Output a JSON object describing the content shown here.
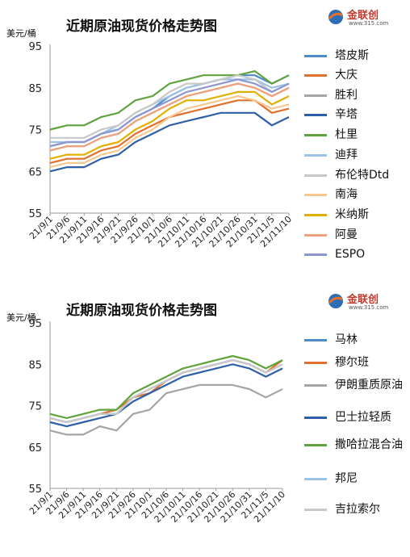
{
  "chart_data": [
    {
      "type": "line",
      "title": "近期原油现货价格走势图",
      "ylabel": "美元/桶",
      "ylim": [
        55,
        95
      ],
      "yticks": [
        55,
        65,
        75,
        85,
        95
      ],
      "xticks": [
        "21/9/1",
        "21/9/6",
        "21/9/11",
        "21/9/16",
        "21/9/21",
        "21/9/26",
        "21/10/1",
        "21/10/6",
        "21/10/11",
        "21/10/16",
        "21/10/21",
        "21/10/26",
        "21/10/31",
        "21/11/5",
        "21/11/10"
      ],
      "x": [
        "21/9/1",
        "21/9/6",
        "21/9/11",
        "21/9/16",
        "21/9/21",
        "21/9/26",
        "21/10/1",
        "21/10/6",
        "21/10/11",
        "21/10/16",
        "21/10/21",
        "21/10/26",
        "21/10/31",
        "21/11/5",
        "21/11/10"
      ],
      "series": [
        {
          "name": "塔皮斯",
          "color": "#4e8bc9",
          "values": [
            71,
            72,
            72,
            74,
            75,
            78,
            80,
            83,
            85,
            86,
            87,
            88,
            88,
            86,
            88
          ]
        },
        {
          "name": "大庆",
          "color": "#e0702d",
          "values": [
            67,
            68,
            68,
            70,
            71,
            74,
            76,
            78,
            79,
            80,
            81,
            82,
            82,
            79,
            80
          ]
        },
        {
          "name": "胜利",
          "color": "#a5a5a5",
          "values": [
            70,
            71,
            71,
            73,
            74,
            77,
            79,
            81,
            83,
            84,
            85,
            86,
            85,
            83,
            85
          ]
        },
        {
          "name": "辛塔",
          "color": "#2f5fa7",
          "values": [
            65,
            66,
            66,
            68,
            69,
            72,
            74,
            76,
            77,
            78,
            79,
            79,
            79,
            76,
            78
          ]
        },
        {
          "name": "杜里",
          "color": "#5fa33d",
          "values": [
            75,
            76,
            76,
            78,
            79,
            82,
            83,
            86,
            87,
            88,
            88,
            88,
            89,
            86,
            88
          ]
        },
        {
          "name": "迪拜",
          "color": "#9cc3e5",
          "values": [
            72,
            72,
            72,
            74,
            76,
            79,
            81,
            83,
            85,
            86,
            87,
            87,
            87,
            85,
            86
          ]
        },
        {
          "name": "布伦特Dtd",
          "color": "#c8c8c8",
          "values": [
            73,
            73,
            73,
            75,
            76,
            79,
            81,
            84,
            86,
            86,
            87,
            88,
            87,
            84,
            86
          ]
        },
        {
          "name": "南海",
          "color": "#f6c88f",
          "values": [
            66,
            67,
            67,
            69,
            70,
            73,
            75,
            78,
            80,
            81,
            82,
            83,
            82,
            80,
            81
          ]
        },
        {
          "name": "米纳斯",
          "color": "#e0b000",
          "values": [
            68,
            69,
            69,
            71,
            72,
            75,
            77,
            80,
            82,
            82,
            83,
            84,
            84,
            81,
            83
          ]
        },
        {
          "name": "阿曼",
          "color": "#f0a07a",
          "values": [
            70,
            71,
            71,
            73,
            74,
            77,
            79,
            81,
            83,
            84,
            85,
            86,
            85,
            83,
            85
          ]
        },
        {
          "name": "ESPO",
          "color": "#8e96d2",
          "values": [
            71,
            72,
            72,
            74,
            75,
            78,
            80,
            82,
            84,
            85,
            86,
            87,
            86,
            84,
            86
          ]
        }
      ]
    },
    {
      "type": "line",
      "title": "近期原油现货价格走势图",
      "ylabel": "美元/桶",
      "ylim": [
        55,
        95
      ],
      "yticks": [
        55,
        65,
        75,
        85,
        95
      ],
      "xticks": [
        "21/9/1",
        "21/9/6",
        "21/9/11",
        "21/9/16",
        "21/9/21",
        "21/9/26",
        "21/10/1",
        "21/10/6",
        "21/10/11",
        "21/10/16",
        "21/10/21",
        "21/10/26",
        "21/10/31",
        "21/11/5",
        "21/11/10"
      ],
      "x": [
        "21/9/1",
        "21/9/6",
        "21/9/11",
        "21/9/16",
        "21/9/21",
        "21/9/26",
        "21/10/1",
        "21/10/6",
        "21/10/11",
        "21/10/16",
        "21/10/21",
        "21/10/26",
        "21/10/31",
        "21/11/5",
        "21/11/10"
      ],
      "series": [
        {
          "name": "马林",
          "color": "#4e8bc9",
          "values": [
            72,
            71,
            72,
            73,
            73,
            77,
            79,
            81,
            83,
            84,
            85,
            86,
            85,
            83,
            85
          ]
        },
        {
          "name": "穆尔班",
          "color": "#e0702d",
          "values": [
            72,
            71,
            72,
            73,
            74,
            77,
            78,
            81,
            83,
            84,
            85,
            86,
            85,
            83,
            86
          ]
        },
        {
          "name": "伊朗重质原油",
          "color": "#a5a5a5",
          "values": [
            69,
            68,
            68,
            70,
            69,
            73,
            74,
            78,
            79,
            80,
            80,
            80,
            79,
            77,
            79
          ]
        },
        {
          "name": "巴士拉轻质",
          "color": "#2f5fa7",
          "values": [
            71,
            70,
            71,
            72,
            73,
            76,
            78,
            80,
            82,
            83,
            84,
            85,
            84,
            82,
            84
          ]
        },
        {
          "name": "撒哈拉混合油",
          "color": "#5fa33d",
          "values": [
            73,
            72,
            73,
            74,
            74,
            78,
            80,
            82,
            84,
            85,
            86,
            87,
            86,
            84,
            86
          ]
        },
        {
          "name": "邦尼",
          "color": "#9cc3e5",
          "values": [
            72,
            71,
            72,
            73,
            73,
            77,
            79,
            81,
            83,
            84,
            85,
            86,
            85,
            83,
            85
          ]
        },
        {
          "name": "吉拉索尔",
          "color": "#c8c8c8",
          "values": [
            72,
            71,
            72,
            73,
            73,
            77,
            79,
            81,
            83,
            84,
            85,
            86,
            85,
            83,
            85
          ]
        }
      ]
    }
  ],
  "logo": {
    "name": "金联创",
    "url": "www.315.com"
  }
}
